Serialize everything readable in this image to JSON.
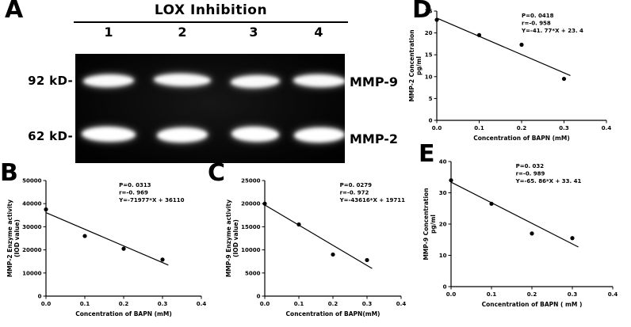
{
  "panels": {
    "a": {
      "letter": "A",
      "title": "LOX Inhibition",
      "lanes": [
        "1",
        "2",
        "3",
        "4"
      ],
      "marker_labels": [
        "92 kD-",
        "62 kD-"
      ],
      "band_labels": [
        "MMP-9",
        "MMP-2"
      ]
    },
    "b": {
      "letter": "B"
    },
    "c": {
      "letter": "C"
    },
    "d": {
      "letter": "D"
    },
    "e": {
      "letter": "E"
    }
  },
  "colors": {
    "foreground": "#000000",
    "background": "#ffffff",
    "gel_background": "#0a0a0a",
    "band": "#ffffff"
  },
  "chart_data": [
    {
      "panel": "B",
      "type": "scatter",
      "series_name": "MMP-2 enzyme activity vs BAPN",
      "x": [
        0,
        0.1,
        0.2,
        0.3
      ],
      "y": [
        37500,
        26000,
        20500,
        15800
      ],
      "xlim": [
        0,
        0.4
      ],
      "ylim": [
        0,
        50000
      ],
      "xticks": [
        0,
        0.1,
        0.2,
        0.3,
        0.4
      ],
      "xtick_labels": [
        "0.0",
        "0.1",
        "0.2",
        "0.3",
        "0.4"
      ],
      "yticks": [
        0,
        10000,
        20000,
        30000,
        40000,
        50000
      ],
      "ytick_labels": [
        "0",
        "10000",
        "20000",
        "30000",
        "40000",
        "50000"
      ],
      "xlabel": "Concentration of BAPN (mM)",
      "ylabel_lines": [
        "MMP-2 Enzyme activity",
        "(IOD value)"
      ],
      "stats": [
        "P=0. 0313",
        "r=-0. 969",
        "Y=-71977*X + 36110"
      ],
      "fit": {
        "slope": -71977,
        "intercept": 36110,
        "x_range": [
          0,
          0.315
        ]
      },
      "grid": false,
      "legend": "none",
      "layout": {
        "margin_left": 50,
        "stats_x_frac": 0.47
      }
    },
    {
      "panel": "C",
      "type": "scatter",
      "series_name": "MMP-9 enzyme activity vs BAPN",
      "x": [
        0,
        0.1,
        0.2,
        0.3
      ],
      "y": [
        20000,
        15500,
        9000,
        7800
      ],
      "xlim": [
        0,
        0.4
      ],
      "ylim": [
        0,
        25000
      ],
      "xticks": [
        0,
        0.1,
        0.2,
        0.3,
        0.4
      ],
      "xtick_labels": [
        "0.0",
        "0.1",
        "0.2",
        "0.3",
        "0.4"
      ],
      "yticks": [
        0,
        5000,
        10000,
        15000,
        20000,
        25000
      ],
      "ytick_labels": [
        "0",
        "5000",
        "10000",
        "15000",
        "20000",
        "25000"
      ],
      "xlabel": "Concentration of BAPN(mM)",
      "ylabel_lines": [
        "MMP-9 Enzyme activity",
        "(IOD value)"
      ],
      "stats": [
        "P=0. 0279",
        "r=-0. 972",
        "Y=-43616*X + 19711"
      ],
      "fit": {
        "slope": -43616,
        "intercept": 19711,
        "x_range": [
          0,
          0.315
        ]
      },
      "grid": false,
      "legend": "none",
      "layout": {
        "margin_left": 50,
        "stats_x_frac": 0.55
      }
    },
    {
      "panel": "D",
      "type": "scatter",
      "series_name": "MMP-2 concentration vs BAPN",
      "x": [
        0,
        0.1,
        0.2,
        0.3
      ],
      "y": [
        23,
        19.5,
        17.3,
        9.5
      ],
      "xlim": [
        0,
        0.4
      ],
      "ylim": [
        0,
        25
      ],
      "xticks": [
        0,
        0.1,
        0.2,
        0.3,
        0.4
      ],
      "xtick_labels": [
        "0.0",
        "0.1",
        "0.2",
        "0.3",
        "0.4"
      ],
      "yticks": [
        0,
        5,
        10,
        15,
        20,
        25
      ],
      "ytick_labels": [
        "0",
        "5",
        "10",
        "15",
        "20",
        "25"
      ],
      "xlabel": "Concentration of BAPN (mM)",
      "ylabel_lines": [
        "MMP-2 Concentration",
        "pg/ml"
      ],
      "stats": [
        "P=0. 0418",
        "r=-0. 958",
        "Y=-41. 77*X + 23. 4"
      ],
      "fit": {
        "slope": -41.77,
        "intercept": 23.4,
        "x_range": [
          0,
          0.315
        ]
      },
      "grid": false,
      "legend": "none",
      "layout": {
        "margin_left": 36,
        "stats_x_frac": 0.5
      }
    },
    {
      "panel": "E",
      "type": "scatter",
      "series_name": "MMP-9 concentration vs BAPN",
      "x": [
        0,
        0.1,
        0.2,
        0.3
      ],
      "y": [
        34,
        26.5,
        17,
        15.5
      ],
      "xlim": [
        0,
        0.4
      ],
      "ylim": [
        0,
        40
      ],
      "xticks": [
        0,
        0.1,
        0.2,
        0.3,
        0.4
      ],
      "xtick_labels": [
        "0.0",
        "0.1",
        "0.2",
        "0.3",
        "0.4"
      ],
      "yticks": [
        0,
        10,
        20,
        30,
        40
      ],
      "ytick_labels": [
        "0",
        "10",
        "20",
        "30",
        "40"
      ],
      "xlabel": "Concentration of BAPN ( mM )",
      "ylabel_lines": [
        "MMP-9 Concentration",
        "pg/ml"
      ],
      "stats": [
        "P=0. 032",
        "r=-0. 989",
        "Y=-65. 86*X + 33. 41"
      ],
      "fit": {
        "slope": -65.86,
        "intercept": 33.41,
        "x_range": [
          0,
          0.315
        ]
      },
      "grid": false,
      "legend": "none",
      "layout": {
        "margin_left": 36,
        "stats_x_frac": 0.4
      }
    }
  ]
}
